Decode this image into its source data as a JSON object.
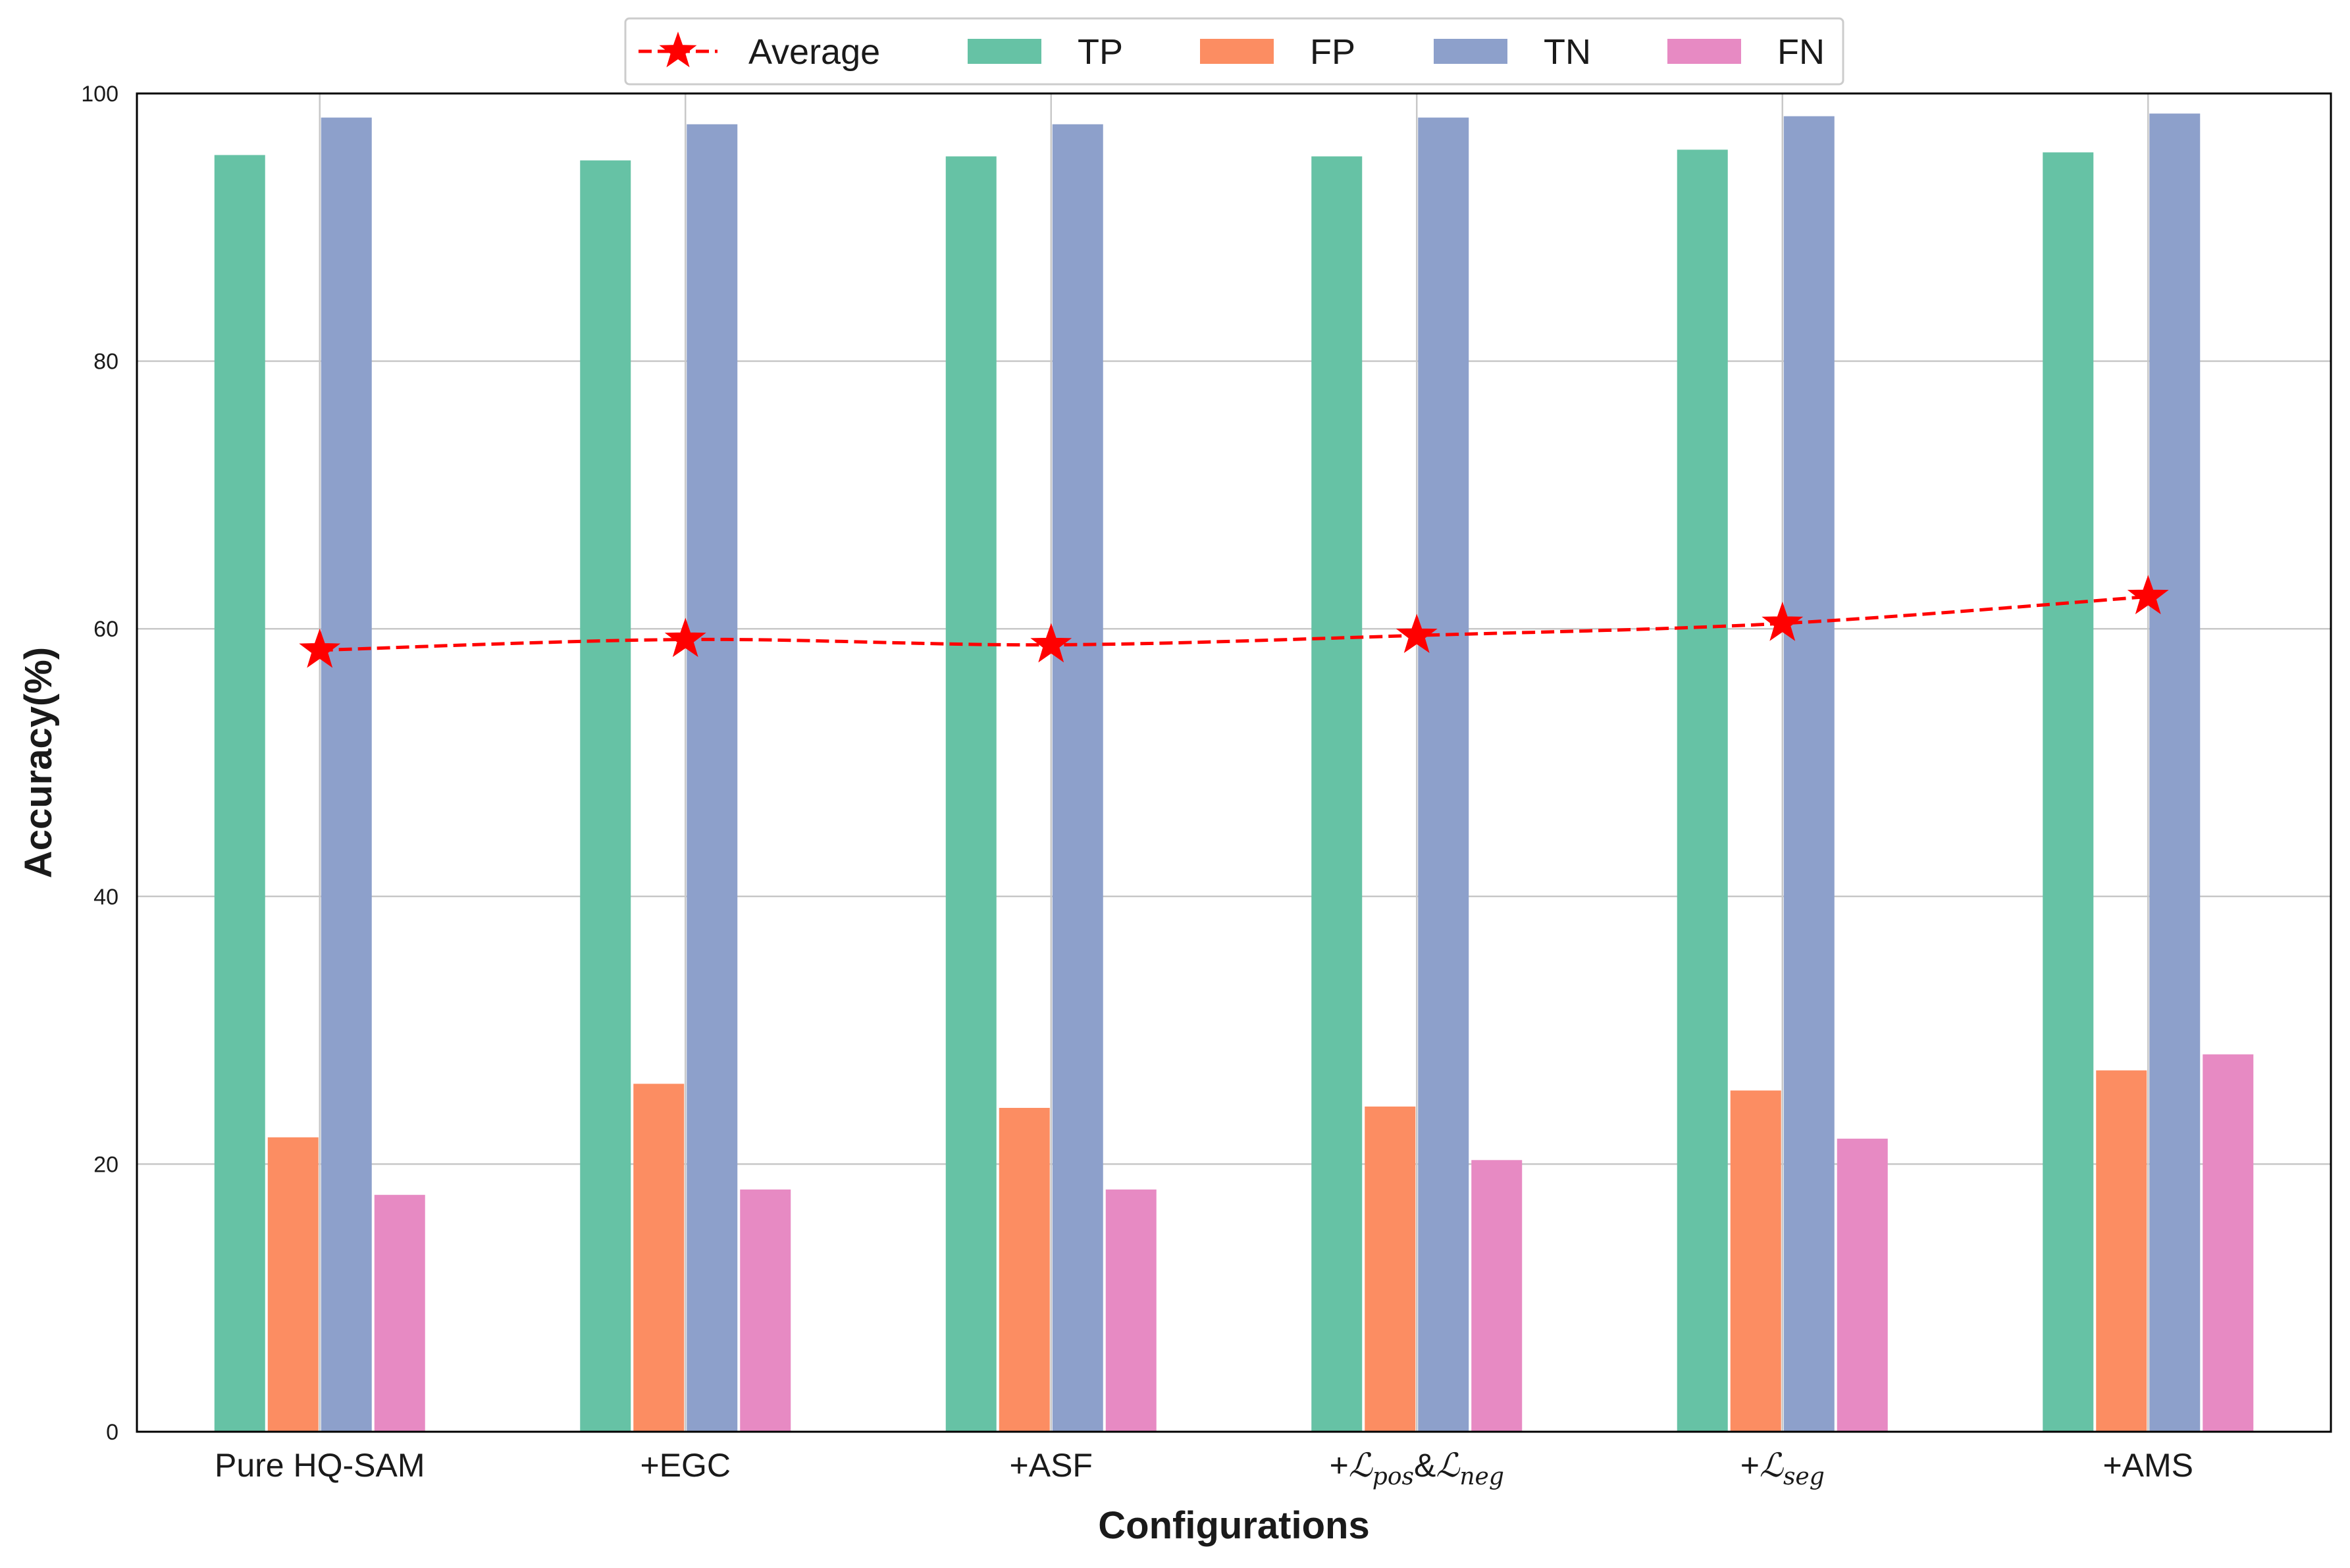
{
  "chart_data": {
    "type": "bar",
    "title": "",
    "xlabel": "Configurations",
    "ylabel": "Accuracy(%)",
    "ylim": [
      0,
      100
    ],
    "yticks": [
      0,
      20,
      40,
      60,
      80,
      100
    ],
    "grid": true,
    "legend_position": "top-center",
    "categories": [
      {
        "label": "Pure HQ-SAM",
        "prefix": "Pure HQ-SAM",
        "math": []
      },
      {
        "label": "+EGC",
        "prefix": "+EGC",
        "math": []
      },
      {
        "label": "+ASF",
        "prefix": "+ASF",
        "math": []
      },
      {
        "label": "+Lpos&Lneg",
        "prefix": "+",
        "math": [
          {
            "sym": "ℒ",
            "sub": "pos"
          },
          {
            "sep": "&"
          },
          {
            "sym": "ℒ",
            "sub": "neg"
          }
        ]
      },
      {
        "label": "+Lseg",
        "prefix": "+",
        "math": [
          {
            "sym": "ℒ",
            "sub": "seg"
          }
        ]
      },
      {
        "label": "+AMS",
        "prefix": "+AMS",
        "math": []
      }
    ],
    "series": [
      {
        "name": "TP",
        "kind": "bar",
        "color": "#66c2a5",
        "values": [
          95.4,
          95.0,
          95.3,
          95.3,
          95.8,
          95.6
        ]
      },
      {
        "name": "FP",
        "kind": "bar",
        "color": "#fc8d62",
        "values": [
          22.0,
          26.0,
          24.2,
          24.3,
          25.5,
          27.0
        ]
      },
      {
        "name": "TN",
        "kind": "bar",
        "color": "#8da0cb",
        "values": [
          98.2,
          97.7,
          97.7,
          98.2,
          98.3,
          98.5
        ]
      },
      {
        "name": "FN",
        "kind": "bar",
        "color": "#e78ac3",
        "values": [
          17.7,
          18.1,
          18.1,
          20.3,
          21.9,
          28.2
        ]
      },
      {
        "name": "Average",
        "kind": "line",
        "color": "#ff0000",
        "marker": "star",
        "linestyle": "dashed",
        "values": [
          58.4,
          59.2,
          58.8,
          59.5,
          60.4,
          62.4
        ]
      }
    ]
  }
}
